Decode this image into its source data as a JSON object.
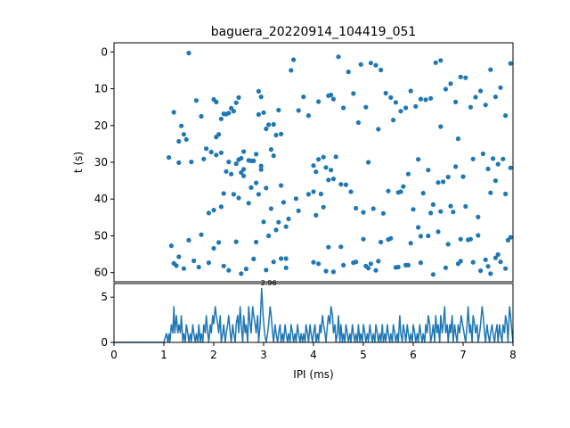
{
  "chart_data": [
    {
      "type": "scatter",
      "title": "baguera_20220914_104419_051",
      "xlabel": "",
      "ylabel": "t (s)",
      "xlim": [
        0,
        8
      ],
      "ylim": [
        62.5,
        -2.5
      ],
      "y_inverted": true,
      "yticks": [
        "0",
        "10",
        "20",
        "30",
        "40",
        "50",
        "60"
      ],
      "marker_color": "#1f77b4",
      "grid": false,
      "points_x": [
        1.5,
        1.1,
        1.2,
        1.3,
        1.35,
        1.4,
        1.45,
        1.6,
        1.65,
        1.75,
        1.8,
        1.85,
        1.95,
        2.0,
        2.05,
        2.05,
        2.1,
        2.15,
        2.2,
        2.25,
        2.3,
        2.35,
        2.4,
        2.45,
        2.5,
        2.55,
        2.6,
        2.7,
        2.8,
        2.85,
        2.9,
        2.95,
        3.0,
        3.05,
        3.1,
        3.15,
        3.2,
        3.25,
        3.3,
        3.35,
        3.45,
        3.55,
        3.6,
        3.7,
        3.8,
        3.9,
        4.0,
        4.1,
        4.2,
        4.3,
        4.35,
        4.4,
        4.5,
        4.6,
        4.7,
        4.8,
        4.95,
        5.05,
        5.15,
        5.25,
        5.35,
        5.45,
        5.55,
        5.65,
        5.75,
        5.85,
        5.95,
        6.05,
        6.15,
        6.25,
        6.35,
        6.45,
        6.55,
        6.65,
        6.75,
        6.85,
        6.95,
        7.05,
        7.15,
        7.25,
        7.35,
        7.45,
        7.55,
        7.65,
        7.75,
        7.85,
        7.95,
        2.15,
        2.9,
        3.35,
        4.45,
        4.9,
        5.3,
        5.6,
        6.55,
        6.9,
        7.6,
        3.4,
        2.5,
        2.75,
        2.25,
        1.15,
        1.9,
        2.0,
        2.3,
        2.45,
        2.55,
        2.6,
        2.75,
        2.85,
        2.95,
        3.05,
        3.15,
        3.3,
        3.5,
        4.05,
        4.15,
        4.25,
        4.35,
        5.1,
        5.4,
        5.7,
        5.9,
        6.1,
        6.3,
        6.5,
        6.7,
        6.85,
        7.0,
        7.2,
        7.4,
        7.5,
        7.65,
        7.8,
        7.95,
        2.05,
        2.2,
        2.4,
        2.6,
        2.95,
        3.2,
        4.0,
        4.1,
        4.3,
        4.55,
        4.75,
        5.0,
        5.2,
        5.5,
        5.8,
        6.0,
        6.2,
        6.4,
        6.6,
        6.8,
        7.05,
        7.3,
        7.55,
        7.7,
        7.85,
        1.3,
        1.55,
        1.75,
        2.0,
        2.15,
        2.35,
        2.5,
        2.7,
        2.9,
        3.1,
        3.25,
        3.45,
        3.65,
        3.9,
        4.05,
        4.2,
        4.4,
        4.65,
        4.85,
        5.0,
        5.15,
        5.35,
        5.55,
        5.75,
        5.95,
        6.15,
        6.35,
        6.55,
        6.75,
        6.95,
        7.15,
        7.35,
        7.55,
        7.75,
        7.95,
        1.2,
        1.3,
        1.5,
        1.9,
        2.1,
        2.3,
        2.55,
        2.8,
        3.0,
        3.2,
        3.45,
        3.7,
        4.1,
        4.3,
        4.55,
        4.8,
        5.05,
        5.25,
        5.5,
        5.7,
        5.9,
        6.1,
        6.3,
        6.5,
        6.7,
        6.9,
        7.1,
        7.3,
        7.5,
        7.7,
        7.9,
        1.25,
        1.4,
        1.7,
        2.2,
        2.45,
        2.65,
        2.85,
        3.05,
        3.35,
        4.0,
        4.25,
        4.4,
        4.6,
        4.85,
        5.1,
        5.3,
        5.65,
        5.85,
        6.15,
        6.4,
        6.65,
        6.95,
        7.2,
        7.45,
        7.65,
        7.85
      ],
      "points_y": [
        0.3,
        28.7,
        16.4,
        24.3,
        20.1,
        22.4,
        23.8,
        56.8,
        13.2,
        17.5,
        29.1,
        26.3,
        27.2,
        12.9,
        13.6,
        23.1,
        22.4,
        18.2,
        16.8,
        16.9,
        16.6,
        15.3,
        16.1,
        13.8,
        12.4,
        28.9,
        27.1,
        29.5,
        29.6,
        27.8,
        10.7,
        12.2,
        16.5,
        20.9,
        19.8,
        26.5,
        19.7,
        22.6,
        15.8,
        36.3,
        47.5,
        5.0,
        2.1,
        15.9,
        12.2,
        17.3,
        30.9,
        13.5,
        28.6,
        11.9,
        11.7,
        12.8,
        1.3,
        15.2,
        5.4,
        11.3,
        3.4,
        15.0,
        3.0,
        3.6,
        4.9,
        11.2,
        12.4,
        13.7,
        16.1,
        15.2,
        10.6,
        14.8,
        12.8,
        13.0,
        12.6,
        2.9,
        2.3,
        10.1,
        8.6,
        13.6,
        6.8,
        7.0,
        15.0,
        12.3,
        10.6,
        14.4,
        4.8,
        12.2,
        9.7,
        17.3,
        3.1,
        27.4,
        17.0,
        22.3,
        28.5,
        19.2,
        21.0,
        18.5,
        20.3,
        23.6,
        29.0,
        40.9,
        39.7,
        36.9,
        32.5,
        52.7,
        43.8,
        43.0,
        29.9,
        30.4,
        32.8,
        33.7,
        29.6,
        35.6,
        31.0,
        37.0,
        42.6,
        46.3,
        45.4,
        32.6,
        38.6,
        31.4,
        32.1,
        30.0,
        43.9,
        38.2,
        33.2,
        29.2,
        32.1,
        35.5,
        34.0,
        31.2,
        33.9,
        29.1,
        27.7,
        31.8,
        35.0,
        29.1,
        31.5,
        28.0,
        38.5,
        38.7,
        31.9,
        32.0,
        28.2,
        38.0,
        29.2,
        34.8,
        36.0,
        38.0,
        43.6,
        42.6,
        37.8,
        36.6,
        42.8,
        38.4,
        41.5,
        35.3,
        43.5,
        42.0,
        44.9,
        38.3,
        30.5,
        38.6,
        30.1,
        29.9,
        49.7,
        53.4,
        42.1,
        33.2,
        29.3,
        41.1,
        38.7,
        50.0,
        48.4,
        56.2,
        39.9,
        38.7,
        44.4,
        42.2,
        34.5,
        36.1,
        42.5,
        50.9,
        57.6,
        51.7,
        50.7,
        38.0,
        52.0,
        50.1,
        43.8,
        43.4,
        41.9,
        50.9,
        50.9,
        59.5,
        60.3,
        57.1,
        50.4,
        57.5,
        55.7,
        51.2,
        57.3,
        51.8,
        59.4,
        60.3,
        56.3,
        46.2,
        57.1,
        58.7,
        43.2,
        57.6,
        53.1,
        53.0,
        57.3,
        58.2,
        59.4,
        51.0,
        58.5,
        58.0,
        47.7,
        50.0,
        48.9,
        52.3,
        57.6,
        51.1,
        49.9,
        58.3,
        55.1,
        51.2,
        58.1,
        58.9,
        58.5,
        58.2,
        51.6,
        59.0,
        51.7,
        59.3,
        56.2,
        57.2,
        59.6,
        59.8,
        58.0,
        57.1,
        58.8,
        56.9,
        58.6,
        58.0,
        57.3,
        60.5,
        58.7,
        56.9,
        57.2,
        56.5,
        56.0,
        58.9,
        58.1,
        58.4,
        57.2,
        57.0,
        58.8,
        57.5,
        57.4,
        56.6,
        59.8
      ]
    },
    {
      "type": "line",
      "title": "",
      "xlabel": "IPI (ms)",
      "ylabel": "",
      "xlim": [
        0,
        8
      ],
      "ylim": [
        0,
        6.5
      ],
      "xticks": [
        "0",
        "1",
        "2",
        "3",
        "4",
        "5",
        "6",
        "7",
        "8"
      ],
      "yticks": [
        "0",
        "5"
      ],
      "annotation": "2.96",
      "annotation_x": 2.96,
      "annotation_y": 6.0,
      "line_color": "#1f77b4",
      "grid": false,
      "series_x": [
        0,
        0.5,
        1.0,
        1.05,
        1.08,
        1.1,
        1.12,
        1.15,
        1.18,
        1.2,
        1.22,
        1.25,
        1.28,
        1.3,
        1.33,
        1.35,
        1.38,
        1.4,
        1.43,
        1.45,
        1.48,
        1.5,
        1.53,
        1.55,
        1.58,
        1.6,
        1.63,
        1.65,
        1.68,
        1.7,
        1.73,
        1.75,
        1.78,
        1.8,
        1.83,
        1.85,
        1.88,
        1.9,
        1.93,
        1.95,
        1.98,
        2.0,
        2.03,
        2.05,
        2.08,
        2.1,
        2.13,
        2.15,
        2.18,
        2.2,
        2.23,
        2.25,
        2.28,
        2.3,
        2.33,
        2.35,
        2.38,
        2.4,
        2.43,
        2.45,
        2.48,
        2.5,
        2.53,
        2.55,
        2.58,
        2.6,
        2.63,
        2.65,
        2.68,
        2.7,
        2.73,
        2.75,
        2.78,
        2.8,
        2.83,
        2.85,
        2.88,
        2.9,
        2.93,
        2.96,
        2.99,
        3.02,
        3.05,
        3.08,
        3.1,
        3.13,
        3.15,
        3.18,
        3.2,
        3.23,
        3.25,
        3.28,
        3.3,
        3.33,
        3.35,
        3.38,
        3.4,
        3.43,
        3.45,
        3.48,
        3.5,
        3.53,
        3.55,
        3.58,
        3.6,
        3.63,
        3.65,
        3.68,
        3.7,
        3.73,
        3.75,
        3.78,
        3.8,
        3.83,
        3.85,
        3.88,
        3.9,
        3.93,
        3.95,
        3.98,
        4.0,
        4.03,
        4.05,
        4.08,
        4.1,
        4.13,
        4.15,
        4.18,
        4.2,
        4.23,
        4.25,
        4.28,
        4.3,
        4.33,
        4.35,
        4.38,
        4.4,
        4.43,
        4.45,
        4.48,
        4.5,
        4.53,
        4.55,
        4.58,
        4.6,
        4.63,
        4.65,
        4.68,
        4.7,
        4.73,
        4.75,
        4.78,
        4.8,
        4.83,
        4.85,
        4.88,
        4.9,
        4.93,
        4.95,
        4.98,
        5.0,
        5.03,
        5.05,
        5.08,
        5.1,
        5.13,
        5.15,
        5.18,
        5.2,
        5.23,
        5.25,
        5.28,
        5.3,
        5.33,
        5.35,
        5.38,
        5.4,
        5.43,
        5.45,
        5.48,
        5.5,
        5.53,
        5.55,
        5.58,
        5.6,
        5.63,
        5.65,
        5.68,
        5.7,
        5.73,
        5.75,
        5.78,
        5.8,
        5.83,
        5.85,
        5.88,
        5.9,
        5.93,
        5.95,
        5.98,
        6.0,
        6.03,
        6.05,
        6.08,
        6.1,
        6.13,
        6.15,
        6.18,
        6.2,
        6.23,
        6.25,
        6.28,
        6.3,
        6.33,
        6.35,
        6.38,
        6.4,
        6.43,
        6.45,
        6.48,
        6.5,
        6.53,
        6.55,
        6.58,
        6.6,
        6.63,
        6.65,
        6.68,
        6.7,
        6.73,
        6.75,
        6.78,
        6.8,
        6.83,
        6.85,
        6.88,
        6.9,
        6.93,
        6.96,
        6.99,
        7.02,
        7.05,
        7.08,
        7.1,
        7.13,
        7.15,
        7.18,
        7.2,
        7.23,
        7.25,
        7.28,
        7.3,
        7.33,
        7.35,
        7.38,
        7.4,
        7.43,
        7.45,
        7.48,
        7.5,
        7.53,
        7.55,
        7.58,
        7.6,
        7.63,
        7.65,
        7.68,
        7.7,
        7.73,
        7.75,
        7.78,
        7.8,
        7.83,
        7.85,
        7.88,
        7.9,
        7.93,
        7.95,
        7.98,
        8.0
      ],
      "series_y": [
        0,
        0,
        0,
        1,
        0,
        1,
        0,
        2,
        1,
        4,
        1,
        3,
        1,
        2,
        1,
        3,
        0,
        1,
        0,
        2,
        1,
        0,
        1,
        0,
        2,
        1,
        0,
        1,
        0,
        2,
        0,
        1,
        0,
        2,
        1,
        3,
        1,
        0,
        2,
        1,
        3,
        2,
        4,
        3,
        2,
        1,
        3,
        0,
        1,
        2,
        0,
        1,
        2,
        3,
        1,
        0,
        2,
        1,
        0,
        2,
        3,
        1,
        4,
        2,
        0,
        3,
        1,
        2,
        0,
        4,
        2,
        1,
        4,
        3,
        2,
        1,
        3,
        0,
        2,
        6,
        3,
        1,
        0,
        1,
        2,
        4,
        3,
        1,
        0,
        2,
        1,
        0,
        1,
        2,
        0,
        1,
        0,
        2,
        1,
        0,
        1,
        0,
        2,
        1,
        0,
        1,
        0,
        2,
        1,
        0,
        1,
        0,
        1,
        0,
        2,
        1,
        0,
        2,
        1,
        0,
        1,
        2,
        0,
        1,
        0,
        2,
        1,
        3,
        2,
        1,
        0,
        2,
        3,
        2,
        4,
        3,
        1,
        2,
        0,
        1,
        3,
        0,
        2,
        0,
        1,
        0,
        2,
        1,
        0,
        1,
        0,
        2,
        1,
        0,
        1,
        0,
        2,
        0,
        1,
        0,
        2,
        1,
        0,
        1,
        0,
        2,
        1,
        0,
        1,
        0,
        2,
        1,
        0,
        1,
        0,
        2,
        0,
        1,
        0,
        2,
        1,
        0,
        1,
        0,
        2,
        1,
        0,
        1,
        0,
        3,
        1,
        0,
        2,
        1,
        0,
        2,
        1,
        0,
        1,
        0,
        2,
        1,
        0,
        1,
        0,
        2,
        1,
        0,
        1,
        0,
        2,
        1,
        3,
        2,
        0,
        1,
        2,
        0,
        3,
        1,
        2,
        0,
        3,
        1,
        2,
        4,
        1,
        2,
        0,
        2,
        1,
        3,
        0,
        2,
        1,
        0,
        2,
        1,
        3,
        2,
        1,
        0,
        2,
        4,
        1,
        2,
        0,
        3,
        2,
        1,
        2,
        0,
        1,
        2,
        4,
        3,
        1,
        0,
        2,
        1,
        0,
        1,
        2,
        1,
        0,
        1,
        2,
        0,
        2,
        1,
        0,
        2,
        1,
        3,
        2,
        0,
        4,
        3,
        1,
        0,
        3,
        2,
        4,
        1,
        3,
        2,
        0,
        4,
        3,
        1,
        0,
        2,
        1,
        3,
        0,
        1,
        0,
        3,
        1,
        2,
        0,
        2,
        1,
        0,
        1,
        0,
        2,
        1,
        0,
        1,
        0,
        1,
        0,
        2,
        1,
        0
      ]
    }
  ]
}
